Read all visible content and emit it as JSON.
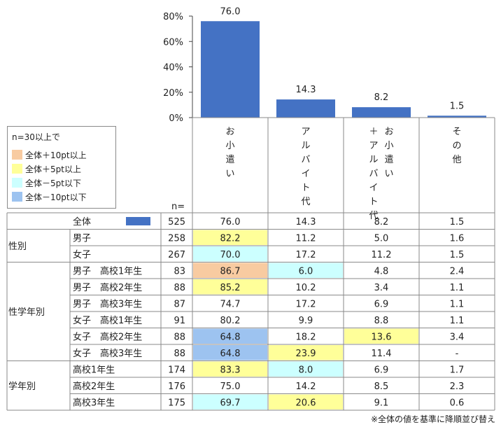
{
  "colors": {
    "bar": "#4472C4",
    "plus10": "#F8CBA1",
    "plus5": "#FFFF99",
    "minus5": "#CCFFFF",
    "minus10": "#9DC3F0",
    "line": "#8a8a8a"
  },
  "legend": {
    "title": "n=30以上で",
    "items": [
      {
        "label": "全体＋10pt以上",
        "color": "plus10"
      },
      {
        "label": "全体＋5pt以上",
        "color": "plus5"
      },
      {
        "label": "全体－5pt以下",
        "color": "minus5"
      },
      {
        "label": "全体－10pt以下",
        "color": "minus10"
      }
    ]
  },
  "n_label": "n=",
  "note": "※全体の値を基準に降順並び替え",
  "chart_data": {
    "type": "bar",
    "categories": [
      "お小遣い",
      "アルバイト代",
      "お小遣い＋アルバイト代",
      "その他"
    ],
    "values": [
      76.0,
      14.3,
      8.2,
      1.5
    ],
    "ylim": [
      0,
      80
    ],
    "yticks": [
      "0%",
      "20%",
      "40%",
      "60%",
      "80%"
    ],
    "bar_labels": [
      "76.0",
      "14.3",
      "8.2",
      "1.5"
    ],
    "grid": false
  },
  "table": {
    "groups": [
      {
        "label": "",
        "rows": [
          0
        ]
      },
      {
        "label": "性別",
        "rows": [
          1,
          2
        ]
      },
      {
        "label": "性学年別",
        "rows": [
          3,
          4,
          5,
          6,
          7,
          8
        ]
      },
      {
        "label": "学年別",
        "rows": [
          9,
          10,
          11
        ]
      }
    ],
    "rows": [
      {
        "label": "全体",
        "n": "525",
        "values": [
          "76.0",
          "14.3",
          "8.2",
          "1.5"
        ],
        "hl": [
          "",
          "",
          "",
          ""
        ],
        "bar_icon": true
      },
      {
        "label": "男子",
        "n": "258",
        "values": [
          "82.2",
          "11.2",
          "5.0",
          "1.6"
        ],
        "hl": [
          "plus5",
          "",
          "",
          ""
        ]
      },
      {
        "label": "女子",
        "n": "267",
        "values": [
          "70.0",
          "17.2",
          "11.2",
          "1.5"
        ],
        "hl": [
          "minus5",
          "",
          "",
          ""
        ]
      },
      {
        "label": "男子　高校1年生",
        "n": "83",
        "values": [
          "86.7",
          "6.0",
          "4.8",
          "2.4"
        ],
        "hl": [
          "plus10",
          "minus5",
          "",
          ""
        ]
      },
      {
        "label": "男子　高校2年生",
        "n": "88",
        "values": [
          "85.2",
          "10.2",
          "3.4",
          "1.1"
        ],
        "hl": [
          "plus5",
          "",
          "",
          ""
        ]
      },
      {
        "label": "男子　高校3年生",
        "n": "87",
        "values": [
          "74.7",
          "17.2",
          "6.9",
          "1.1"
        ],
        "hl": [
          "",
          "",
          "",
          ""
        ]
      },
      {
        "label": "女子　高校1年生",
        "n": "91",
        "values": [
          "80.2",
          "9.9",
          "8.8",
          "1.1"
        ],
        "hl": [
          "",
          "",
          "",
          ""
        ]
      },
      {
        "label": "女子　高校2年生",
        "n": "88",
        "values": [
          "64.8",
          "18.2",
          "13.6",
          "3.4"
        ],
        "hl": [
          "minus10",
          "",
          "plus5",
          ""
        ]
      },
      {
        "label": "女子　高校3年生",
        "n": "88",
        "values": [
          "64.8",
          "23.9",
          "11.4",
          "-"
        ],
        "hl": [
          "minus10",
          "plus5",
          "",
          ""
        ]
      },
      {
        "label": "高校1年生",
        "n": "174",
        "values": [
          "83.3",
          "8.0",
          "6.9",
          "1.7"
        ],
        "hl": [
          "plus5",
          "minus5",
          "",
          ""
        ]
      },
      {
        "label": "高校2年生",
        "n": "176",
        "values": [
          "75.0",
          "14.2",
          "8.5",
          "2.3"
        ],
        "hl": [
          "",
          "",
          "",
          ""
        ]
      },
      {
        "label": "高校3年生",
        "n": "175",
        "values": [
          "69.7",
          "20.6",
          "9.1",
          "0.6"
        ],
        "hl": [
          "minus5",
          "plus5",
          "",
          ""
        ]
      }
    ]
  }
}
